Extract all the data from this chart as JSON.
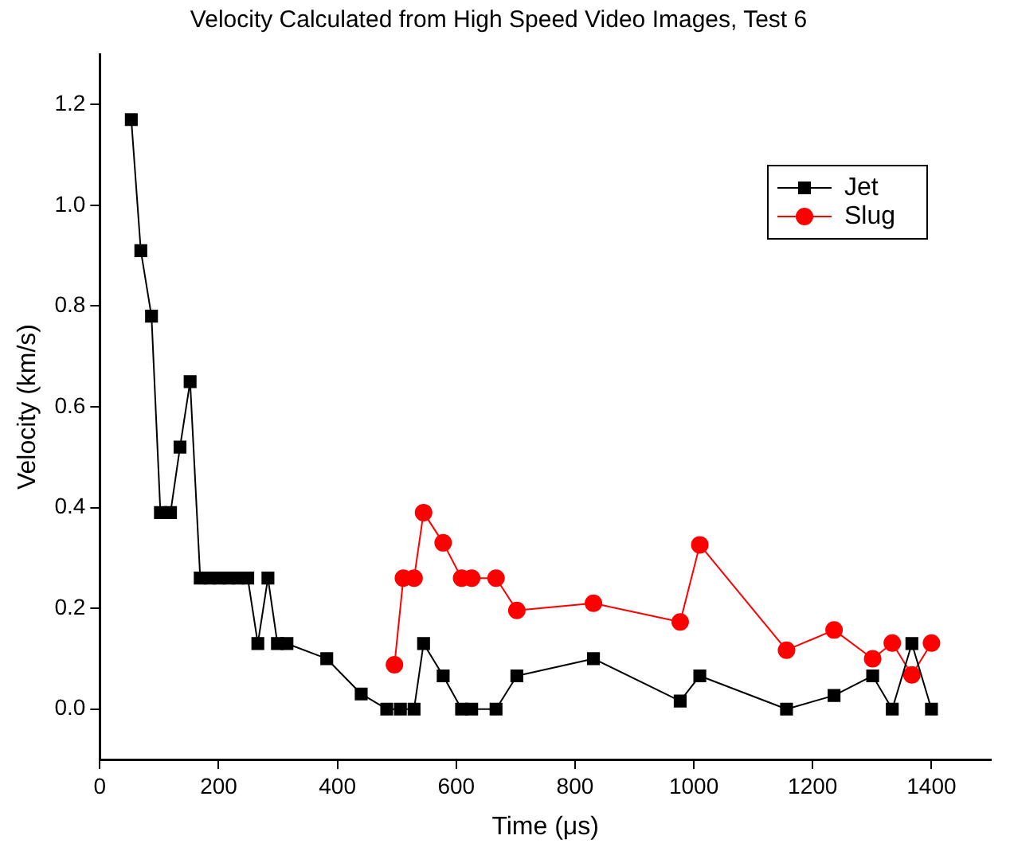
{
  "chart_data": {
    "type": "line",
    "title": "Velocity Calculated from High Speed Video Images, Test 6",
    "xlabel": "Time (μs)",
    "ylabel": "Velocity (km/s)",
    "xlim": [
      0,
      1500
    ],
    "xticks": [
      0,
      200,
      400,
      600,
      800,
      1000,
      1200,
      1400
    ],
    "ylim": [
      -0.1,
      1.3
    ],
    "yticks": [
      {
        "value": 0,
        "label": "0.0"
      },
      0.2,
      0.4,
      0.6,
      0.8,
      {
        "value": 1,
        "label": "1.0"
      },
      1.2
    ],
    "grid": false,
    "legend": "top right",
    "line_style": "solid",
    "series": [
      {
        "name": "Jet",
        "color": "#000000",
        "marker": "square",
        "x": [
          53,
          69,
          87,
          102,
          119,
          135,
          152,
          169,
          185,
          201,
          217,
          233,
          249,
          266,
          283,
          299,
          315,
          382,
          440,
          483,
          506,
          529,
          545,
          578,
          609,
          626,
          667,
          702,
          831,
          977,
          1010,
          1156,
          1236,
          1301,
          1334,
          1367,
          1400
        ],
        "values": [
          1.17,
          0.91,
          0.78,
          0.39,
          0.39,
          0.52,
          0.65,
          0.26,
          0.26,
          0.26,
          0.26,
          0.26,
          0.26,
          0.13,
          0.26,
          0.13,
          0.13,
          0.1,
          0.03,
          0,
          0,
          0,
          0.13,
          0.066,
          0,
          0,
          0,
          0.066,
          0.1,
          0.016,
          0.066,
          0,
          0.027,
          0.066,
          0,
          0.13,
          0
        ]
      },
      {
        "name": "Slug",
        "color": "#ff0000",
        "marker": "circle",
        "x": [
          496,
          511,
          529,
          545,
          578,
          609,
          626,
          667,
          702,
          831,
          977,
          1010,
          1156,
          1236,
          1301,
          1334,
          1367,
          1400
        ],
        "values": [
          0.088,
          0.26,
          0.26,
          0.39,
          0.33,
          0.26,
          0.26,
          0.26,
          0.196,
          0.21,
          0.173,
          0.326,
          0.117,
          0.157,
          0.1,
          0.131,
          0.068,
          0.131
        ]
      }
    ]
  }
}
